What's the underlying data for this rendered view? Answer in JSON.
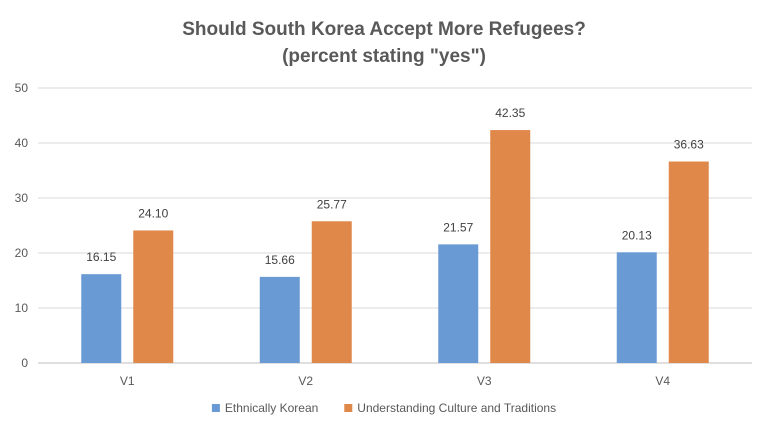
{
  "chart_data": {
    "type": "bar",
    "title": "Should South Korea Accept More Refugees?",
    "subtitle": "(percent stating \"yes\")",
    "categories": [
      "V1",
      "V2",
      "V3",
      "V4"
    ],
    "series": [
      {
        "name": "Ethnically Korean",
        "color": "#6a9ad3",
        "values": [
          16.15,
          15.66,
          21.57,
          20.13
        ]
      },
      {
        "name": "Understanding Culture and Traditions",
        "color": "#e0874a",
        "values": [
          24.1,
          25.77,
          42.35,
          36.63
        ]
      }
    ],
    "ylim": [
      0,
      50
    ],
    "yticks": [
      0,
      10,
      20,
      30,
      40,
      50
    ],
    "grid": true,
    "legend": "bottom",
    "xlabel": "",
    "ylabel": ""
  }
}
